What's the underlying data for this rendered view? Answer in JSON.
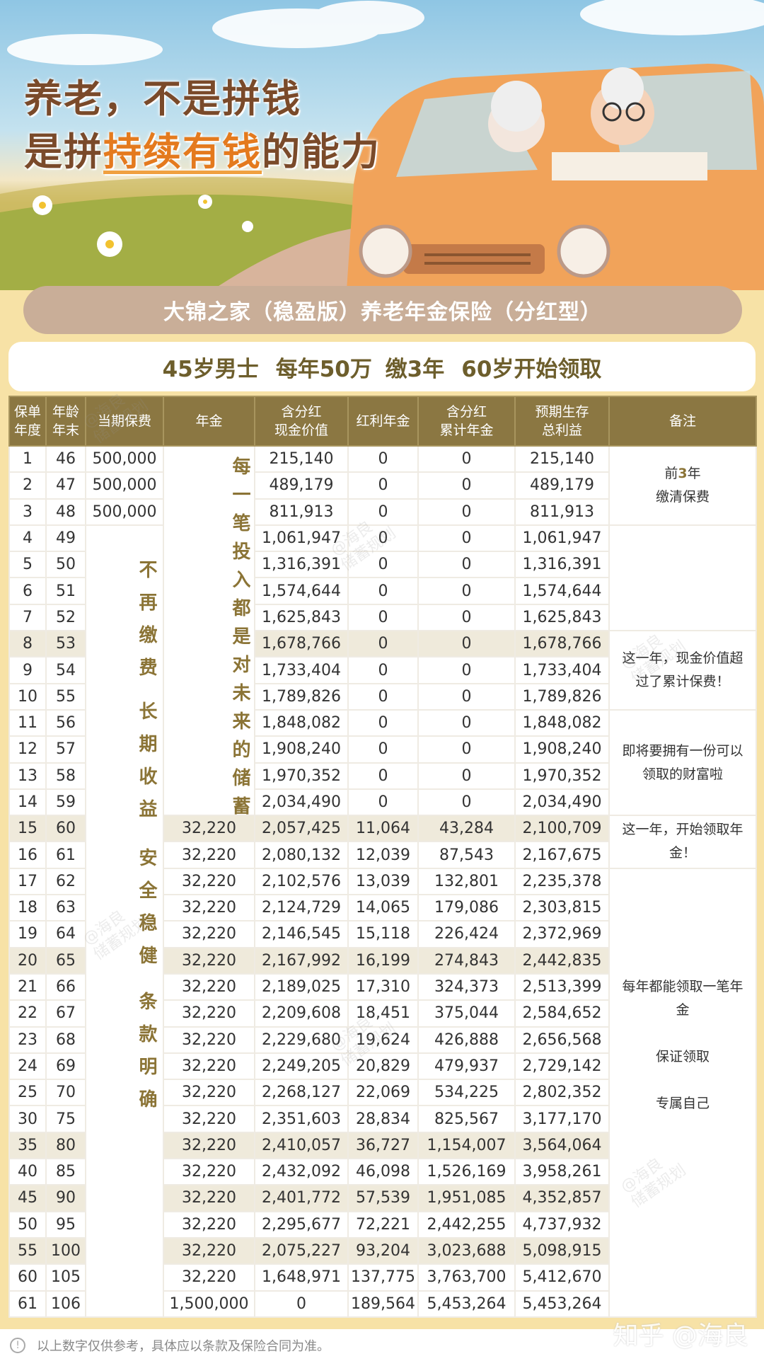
{
  "banner": {
    "line1": "养老，不是拼钱",
    "line2_pre": "是拼",
    "line2_highlight": "持续有钱",
    "line2_post": "的能力"
  },
  "product_title": "大锦之家（稳盈版）养老年金保险（分红型）",
  "scenario": {
    "part1": "45岁男士",
    "part2": "每年50万 缴3年",
    "part3": "60岁开始领取"
  },
  "table": {
    "headers": [
      "保单\n年度",
      "年龄\n年末",
      "当期保费",
      "年金",
      "含分红\n现金价值",
      "红利年金",
      "含分红\n累计年金",
      "预期生存\n总利益",
      "备注"
    ],
    "rows": [
      [
        "1",
        "46",
        "500,000",
        "",
        "215,140",
        "0",
        "0",
        "215,140"
      ],
      [
        "2",
        "47",
        "500,000",
        "",
        "489,179",
        "0",
        "0",
        "489,179"
      ],
      [
        "3",
        "48",
        "500,000",
        "",
        "811,913",
        "0",
        "0",
        "811,913"
      ],
      [
        "4",
        "49",
        "",
        "",
        "1,061,947",
        "0",
        "0",
        "1,061,947"
      ],
      [
        "5",
        "50",
        "",
        "",
        "1,316,391",
        "0",
        "0",
        "1,316,391"
      ],
      [
        "6",
        "51",
        "",
        "",
        "1,574,644",
        "0",
        "0",
        "1,574,644"
      ],
      [
        "7",
        "52",
        "",
        "",
        "1,625,843",
        "0",
        "0",
        "1,625,843"
      ],
      [
        "8",
        "53",
        "",
        "",
        "1,678,766",
        "0",
        "0",
        "1,678,766"
      ],
      [
        "9",
        "54",
        "",
        "",
        "1,733,404",
        "0",
        "0",
        "1,733,404"
      ],
      [
        "10",
        "55",
        "",
        "",
        "1,789,826",
        "0",
        "0",
        "1,789,826"
      ],
      [
        "11",
        "56",
        "",
        "",
        "1,848,082",
        "0",
        "0",
        "1,848,082"
      ],
      [
        "12",
        "57",
        "",
        "",
        "1,908,240",
        "0",
        "0",
        "1,908,240"
      ],
      [
        "13",
        "58",
        "",
        "",
        "1,970,352",
        "0",
        "0",
        "1,970,352"
      ],
      [
        "14",
        "59",
        "",
        "",
        "2,034,490",
        "0",
        "0",
        "2,034,490"
      ],
      [
        "15",
        "60",
        "",
        "32,220",
        "2,057,425",
        "11,064",
        "43,284",
        "2,100,709"
      ],
      [
        "16",
        "61",
        "",
        "32,220",
        "2,080,132",
        "12,039",
        "87,543",
        "2,167,675"
      ],
      [
        "17",
        "62",
        "",
        "32,220",
        "2,102,576",
        "13,039",
        "132,801",
        "2,235,378"
      ],
      [
        "18",
        "63",
        "",
        "32,220",
        "2,124,729",
        "14,065",
        "179,086",
        "2,303,815"
      ],
      [
        "19",
        "64",
        "",
        "32,220",
        "2,146,545",
        "15,118",
        "226,424",
        "2,372,969"
      ],
      [
        "20",
        "65",
        "",
        "32,220",
        "2,167,992",
        "16,199",
        "274,843",
        "2,442,835"
      ],
      [
        "21",
        "66",
        "",
        "32,220",
        "2,189,025",
        "17,310",
        "324,373",
        "2,513,399"
      ],
      [
        "22",
        "67",
        "",
        "32,220",
        "2,209,608",
        "18,451",
        "375,044",
        "2,584,652"
      ],
      [
        "23",
        "68",
        "",
        "32,220",
        "2,229,680",
        "19,624",
        "426,888",
        "2,656,568"
      ],
      [
        "24",
        "69",
        "",
        "32,220",
        "2,249,205",
        "20,829",
        "479,937",
        "2,729,142"
      ],
      [
        "25",
        "70",
        "",
        "32,220",
        "2,268,127",
        "22,069",
        "534,225",
        "2,802,352"
      ],
      [
        "30",
        "75",
        "",
        "32,220",
        "2,351,603",
        "28,834",
        "825,567",
        "3,177,170"
      ],
      [
        "35",
        "80",
        "",
        "32,220",
        "2,410,057",
        "36,727",
        "1,154,007",
        "3,564,064"
      ],
      [
        "40",
        "85",
        "",
        "32,220",
        "2,432,092",
        "46,098",
        "1,526,169",
        "3,958,261"
      ],
      [
        "45",
        "90",
        "",
        "32,220",
        "2,401,772",
        "57,539",
        "1,951,085",
        "4,352,857"
      ],
      [
        "50",
        "95",
        "",
        "32,220",
        "2,295,677",
        "72,221",
        "2,442,255",
        "4,737,932"
      ],
      [
        "55",
        "100",
        "",
        "32,220",
        "2,075,227",
        "93,204",
        "3,023,688",
        "5,098,915"
      ],
      [
        "60",
        "105",
        "",
        "32,220",
        "1,648,971",
        "137,775",
        "3,763,700",
        "5,412,670"
      ],
      [
        "61",
        "106",
        "",
        "1,500,000",
        "0",
        "189,564",
        "5,453,264",
        "5,453,264"
      ]
    ],
    "highlighted_years": [
      "8",
      "15",
      "20",
      "35",
      "45",
      "55"
    ],
    "premium_column_slogans": [
      "不再缴费",
      "长期收益",
      "安全稳健",
      "条款明确"
    ],
    "annuity_column_slogan": "每一笔投入都是对未来的储蓄",
    "notes": [
      {
        "text_pre": "前",
        "text_bold": "3",
        "text_post": "年\n缴清保费"
      },
      {
        "text": ""
      },
      {
        "text": "这一年，现金价值超过了累计保费！"
      },
      {
        "text": "即将要拥有一份可以领取的财富啦"
      },
      {
        "text": "这一年，开始领取年金！"
      },
      {
        "text": "每年都能领取一笔年金\n\n保证领取\n\n专属自己"
      }
    ]
  },
  "footer": {
    "disclaimer": "以上数字仅供参考，具体应以条款及保险合同为准。",
    "info_icon": "!"
  },
  "watermark": {
    "text": "@海良\n储蓄规划",
    "platform": "知乎 @海良"
  }
}
